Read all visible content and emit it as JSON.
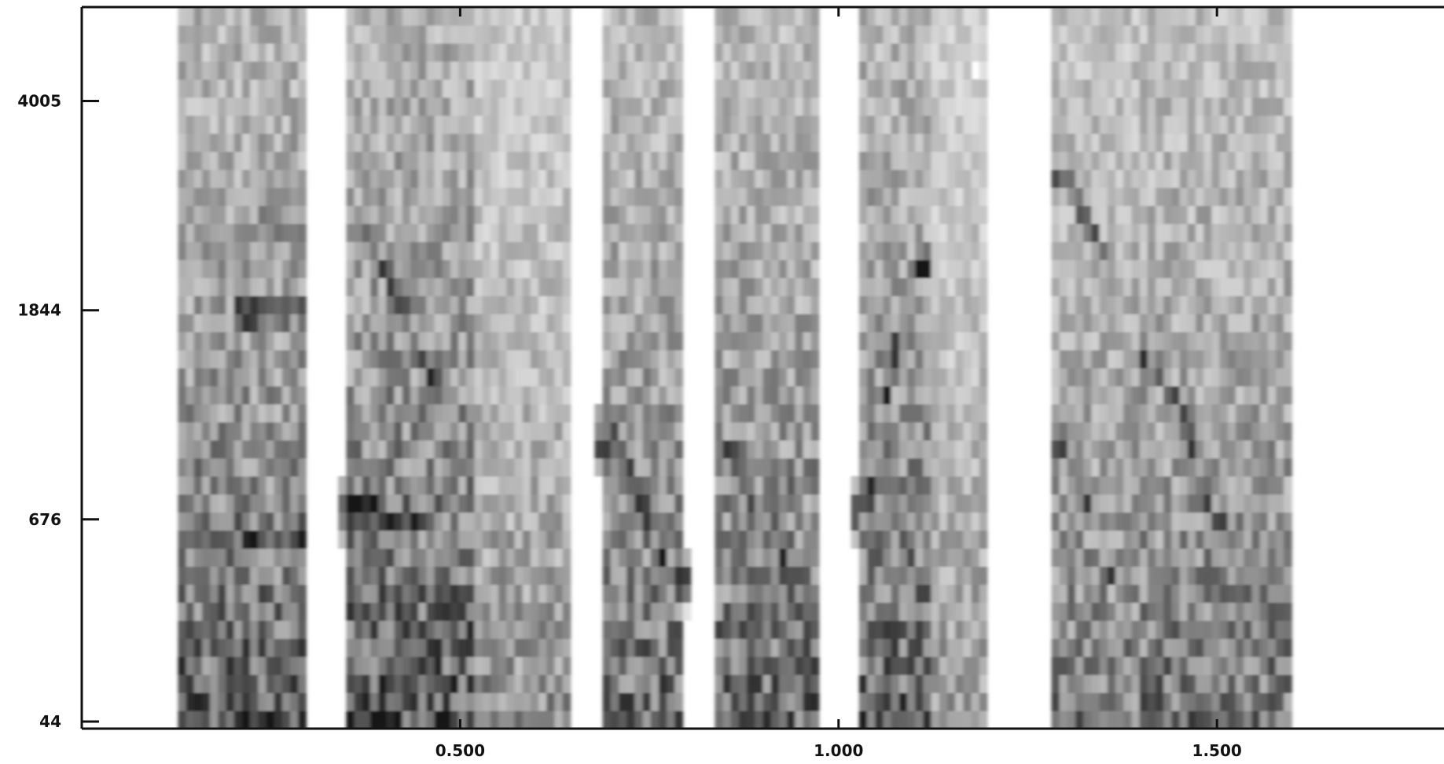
{
  "chart_data": {
    "type": "heatmap",
    "title": "",
    "xlabel": "",
    "ylabel": "",
    "xlim": [
      0,
      1.8
    ],
    "ylim": [
      44,
      5500
    ],
    "y_scale": "mel",
    "colormap": "grayscale, dark = high energy",
    "grid": false,
    "legend": "none",
    "x_ticks": [
      {
        "value": 0.5,
        "label": "0.500"
      },
      {
        "value": 1.0,
        "label": "1.000"
      },
      {
        "value": 1.5,
        "label": "1.500"
      }
    ],
    "y_ticks": [
      {
        "value": 44,
        "label": "44"
      },
      {
        "value": 676,
        "label": "676"
      },
      {
        "value": 1844,
        "label": "1844"
      },
      {
        "value": 4005,
        "label": "4005"
      }
    ],
    "segments": [
      {
        "start": 0.13,
        "end": 0.3,
        "intensity": 0.85
      },
      {
        "start": 0.35,
        "end": 0.52,
        "intensity": 0.9
      },
      {
        "start": 0.48,
        "end": 0.65,
        "intensity": 0.6
      },
      {
        "start": 0.69,
        "end": 0.79,
        "intensity": 0.8
      },
      {
        "start": 0.84,
        "end": 0.97,
        "intensity": 0.8
      },
      {
        "start": 1.03,
        "end": 1.12,
        "intensity": 0.85
      },
      {
        "start": 1.12,
        "end": 1.2,
        "intensity": 0.55
      },
      {
        "start": 1.28,
        "end": 1.42,
        "intensity": 0.7
      },
      {
        "start": 1.4,
        "end": 1.6,
        "intensity": 0.75
      }
    ],
    "formants": [
      {
        "start": 0.22,
        "end": 0.28,
        "freq_start": 600,
        "freq_end": 600,
        "strength": 1.0
      },
      {
        "start": 0.22,
        "end": 0.28,
        "freq_start": 1844,
        "freq_end": 1844,
        "strength": 0.95
      },
      {
        "start": 0.22,
        "end": 0.28,
        "freq_start": 2600,
        "freq_end": 2600,
        "strength": 0.6
      },
      {
        "start": 0.36,
        "end": 0.44,
        "freq_start": 720,
        "freq_end": 680,
        "strength": 0.95
      },
      {
        "start": 0.38,
        "end": 0.46,
        "freq_start": 2400,
        "freq_end": 1400,
        "strength": 0.85
      },
      {
        "start": 0.7,
        "end": 0.78,
        "freq_start": 1050,
        "freq_end": 450,
        "strength": 0.9
      },
      {
        "start": 0.86,
        "end": 0.94,
        "freq_start": 950,
        "freq_end": 420,
        "strength": 0.85
      },
      {
        "start": 0.86,
        "end": 0.94,
        "freq_start": 300,
        "freq_end": 820,
        "strength": 0.7
      },
      {
        "start": 1.04,
        "end": 1.1,
        "freq_start": 700,
        "freq_end": 2200,
        "strength": 0.9
      },
      {
        "start": 1.3,
        "end": 1.38,
        "freq_start": 3000,
        "freq_end": 1900,
        "strength": 0.7
      },
      {
        "start": 1.3,
        "end": 1.38,
        "freq_start": 1000,
        "freq_end": 300,
        "strength": 0.75
      },
      {
        "start": 1.42,
        "end": 1.5,
        "freq_start": 1500,
        "freq_end": 650,
        "strength": 0.8
      }
    ]
  }
}
